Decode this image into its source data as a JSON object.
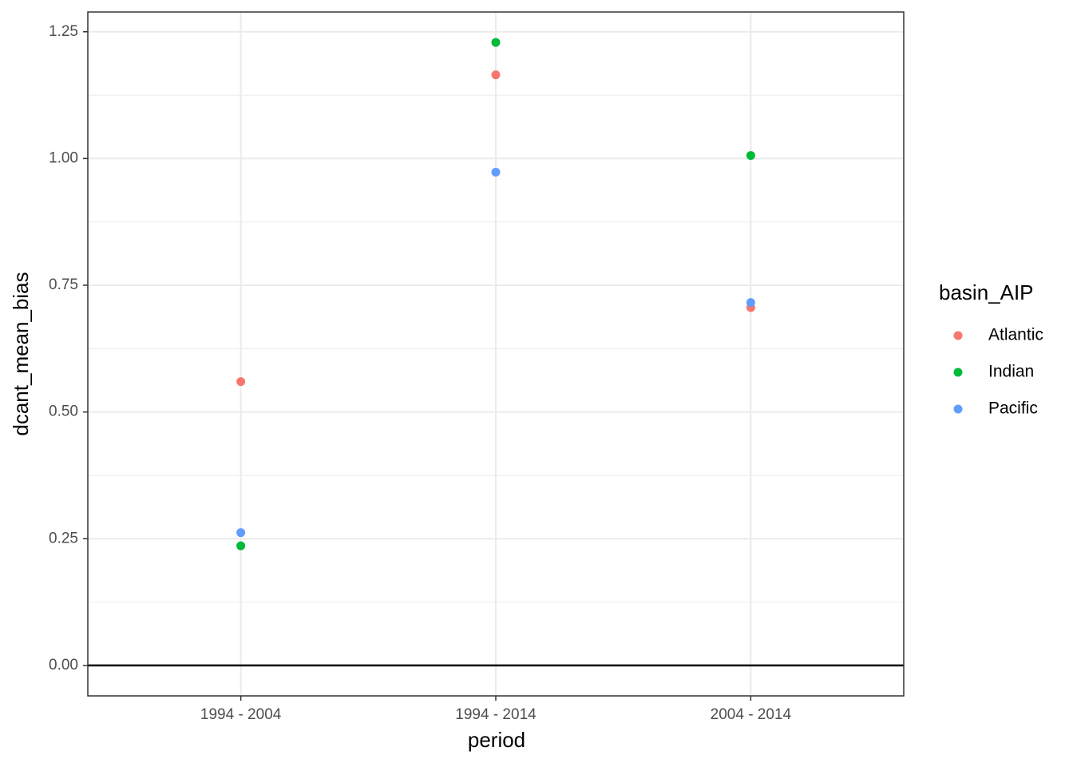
{
  "chart_data": {
    "type": "scatter",
    "x_label": "period",
    "y_label": "dcant_mean_bias",
    "categories": [
      "1994 - 2004",
      "1994 - 2014",
      "2004 - 2014"
    ],
    "legend_title": "basin_AIP",
    "series": [
      {
        "name": "Atlantic",
        "color": "#F8766D",
        "values": [
          0.56,
          1.165,
          0.706
        ]
      },
      {
        "name": "Indian",
        "color": "#00BA38",
        "values": [
          0.236,
          1.229,
          1.006
        ]
      },
      {
        "name": "Pacific",
        "color": "#619CFF",
        "values": [
          0.262,
          0.973,
          0.716
        ]
      }
    ],
    "ylim": [
      -0.06,
      1.289
    ],
    "yticks": [
      {
        "value": 0,
        "label": "0.00"
      },
      {
        "value": 0.25,
        "label": "0.25"
      },
      {
        "value": 0.5,
        "label": "0.50"
      },
      {
        "value": 0.75,
        "label": "0.75"
      },
      {
        "value": 1,
        "label": "1.00"
      },
      {
        "value": 1.25,
        "label": "1.25"
      }
    ],
    "hline": 0,
    "grid": true,
    "legend_position": "right"
  }
}
